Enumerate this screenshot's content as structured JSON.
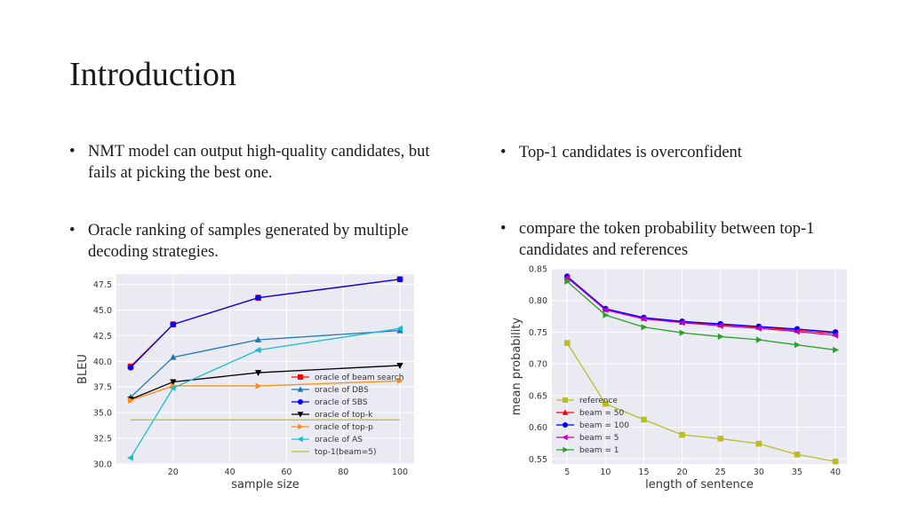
{
  "slide": {
    "title": "Introduction",
    "bullets_left": [
      "NMT model can output high-quality candidates, but fails at picking the best one.",
      "Oracle ranking of samples generated by multiple decoding strategies."
    ],
    "bullets_right": [
      "Top-1 candidates is overconfident",
      "compare the token probability between top-1 candidates and references"
    ],
    "bullet_char": "•"
  },
  "chart_data": [
    {
      "type": "line",
      "xlabel": "sample size",
      "ylabel": "BLEU",
      "xlim": [
        0,
        105
      ],
      "ylim": [
        30.0,
        48.5
      ],
      "xticks": [
        20,
        40,
        60,
        80,
        100
      ],
      "yticks": [
        30.0,
        32.5,
        35.0,
        37.5,
        40.0,
        42.5,
        45.0,
        47.5
      ],
      "grid": true,
      "legend_position": "lower-right",
      "series": [
        {
          "name": "oracle of beam search",
          "color": "#ff0000",
          "marker": "square",
          "x": [
            5,
            20,
            50,
            100
          ],
          "y": [
            39.5,
            43.6,
            46.2,
            48.0
          ]
        },
        {
          "name": "oracle of DBS",
          "color": "#1f77b4",
          "marker": "triangle-up",
          "x": [
            5,
            20,
            50,
            100
          ],
          "y": [
            36.5,
            40.4,
            42.1,
            43.0
          ]
        },
        {
          "name": "oracle of SBS",
          "color": "#0000ff",
          "marker": "circle",
          "x": [
            5,
            20,
            50,
            100
          ],
          "y": [
            39.4,
            43.6,
            46.2,
            48.0
          ]
        },
        {
          "name": "oracle of top-k",
          "color": "#000000",
          "marker": "triangle-down",
          "x": [
            5,
            20,
            50,
            100
          ],
          "y": [
            36.3,
            38.0,
            38.9,
            39.6
          ]
        },
        {
          "name": "oracle of top-p",
          "color": "#ff8c1a",
          "marker": "triangle-right",
          "x": [
            5,
            20,
            50,
            100
          ],
          "y": [
            36.2,
            37.6,
            37.6,
            38.1
          ]
        },
        {
          "name": "oracle of AS",
          "color": "#17becf",
          "marker": "triangle-left",
          "x": [
            5,
            20,
            50,
            100
          ],
          "y": [
            30.6,
            37.4,
            41.1,
            43.2
          ]
        },
        {
          "name": "top-1(beam=5)",
          "color": "#bcbd22",
          "marker": "none",
          "x": [
            5,
            100
          ],
          "y": [
            34.3,
            34.3
          ]
        }
      ]
    },
    {
      "type": "line",
      "xlabel": "length of sentence",
      "ylabel": "mean probability",
      "xlim": [
        3,
        41.5
      ],
      "ylim": [
        0.542,
        0.85
      ],
      "xticks": [
        5,
        10,
        15,
        20,
        25,
        30,
        35,
        40
      ],
      "yticks": [
        0.55,
        0.6,
        0.65,
        0.7,
        0.75,
        0.8,
        0.85
      ],
      "grid": true,
      "legend_position": "lower-left",
      "series": [
        {
          "name": "reference",
          "color": "#bcbd22",
          "marker": "square",
          "x": [
            5,
            10,
            15,
            20,
            25,
            30,
            35,
            40
          ],
          "y": [
            0.733,
            0.637,
            0.612,
            0.588,
            0.582,
            0.574,
            0.557,
            0.546
          ]
        },
        {
          "name": "beam = 50",
          "color": "#ff0000",
          "marker": "triangle-up",
          "x": [
            5,
            10,
            15,
            20,
            25,
            30,
            35,
            40
          ],
          "y": [
            0.837,
            0.786,
            0.772,
            0.766,
            0.762,
            0.758,
            0.753,
            0.748
          ]
        },
        {
          "name": "beam = 100",
          "color": "#0000ff",
          "marker": "circle",
          "x": [
            5,
            10,
            15,
            20,
            25,
            30,
            35,
            40
          ],
          "y": [
            0.838,
            0.787,
            0.773,
            0.767,
            0.763,
            0.759,
            0.755,
            0.75
          ]
        },
        {
          "name": "beam = 5",
          "color": "#c000c0",
          "marker": "triangle-left",
          "x": [
            5,
            10,
            15,
            20,
            25,
            30,
            35,
            40
          ],
          "y": [
            0.836,
            0.785,
            0.771,
            0.765,
            0.76,
            0.756,
            0.751,
            0.745
          ]
        },
        {
          "name": "beam = 1",
          "color": "#2ca02c",
          "marker": "triangle-right",
          "x": [
            5,
            10,
            15,
            20,
            25,
            30,
            35,
            40
          ],
          "y": [
            0.83,
            0.777,
            0.758,
            0.749,
            0.743,
            0.738,
            0.73,
            0.722
          ]
        }
      ]
    }
  ]
}
